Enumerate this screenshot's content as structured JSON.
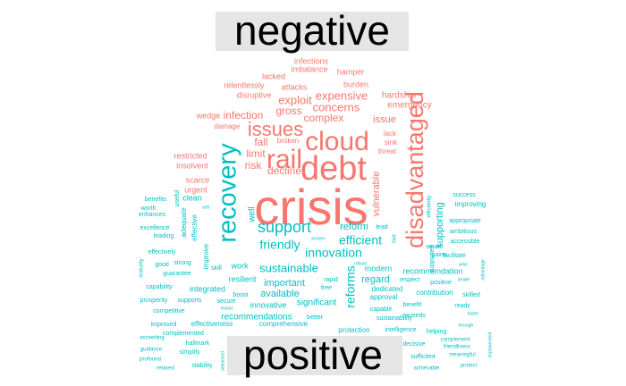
{
  "chart_data": {
    "type": "wordcloud",
    "title": "",
    "groups": [
      {
        "name": "negative",
        "color": "#F8766D",
        "words": [
          {
            "text": "crisis",
            "weight": 100
          },
          {
            "text": "debt",
            "weight": 56
          },
          {
            "text": "cloud",
            "weight": 44
          },
          {
            "text": "rail",
            "weight": 44
          },
          {
            "text": "disadvantaged",
            "weight": 40
          },
          {
            "text": "issues",
            "weight": 33
          },
          {
            "text": "concerns",
            "weight": 19
          },
          {
            "text": "expensive",
            "weight": 19
          },
          {
            "text": "exploit",
            "weight": 19
          },
          {
            "text": "complex",
            "weight": 17
          },
          {
            "text": "infection",
            "weight": 17
          },
          {
            "text": "gross",
            "weight": 17
          },
          {
            "text": "fall",
            "weight": 17
          },
          {
            "text": "decline",
            "weight": 17
          },
          {
            "text": "risk",
            "weight": 17
          },
          {
            "text": "limit",
            "weight": 17
          },
          {
            "text": "issue",
            "weight": 16
          },
          {
            "text": "vulnerable",
            "weight": 16
          },
          {
            "text": "hardship",
            "weight": 14
          },
          {
            "text": "emergency",
            "weight": 14
          },
          {
            "text": "burden",
            "weight": 13
          },
          {
            "text": "attacks",
            "weight": 13
          },
          {
            "text": "relentlessly",
            "weight": 13
          },
          {
            "text": "disruptive",
            "weight": 13
          },
          {
            "text": "lacked",
            "weight": 13
          },
          {
            "text": "hamper",
            "weight": 13
          },
          {
            "text": "infections",
            "weight": 13
          },
          {
            "text": "imbalance",
            "weight": 13
          },
          {
            "text": "wedge",
            "weight": 13
          },
          {
            "text": "damage",
            "weight": 12
          },
          {
            "text": "broken",
            "weight": 12
          },
          {
            "text": "lack",
            "weight": 12
          },
          {
            "text": "sink",
            "weight": 12
          },
          {
            "text": "threat",
            "weight": 12
          },
          {
            "text": "restricted",
            "weight": 13
          },
          {
            "text": "insolvent",
            "weight": 13
          },
          {
            "text": "scarce",
            "weight": 13
          },
          {
            "text": "urgent",
            "weight": 13
          }
        ]
      },
      {
        "name": "positive",
        "color": "#00BFC4",
        "words": [
          {
            "text": "recovery",
            "weight": 50
          },
          {
            "text": "support",
            "weight": 33
          },
          {
            "text": "efficient",
            "weight": 25
          },
          {
            "text": "friendly",
            "weight": 25
          },
          {
            "text": "innovation",
            "weight": 25
          },
          {
            "text": "sustainable",
            "weight": 25
          },
          {
            "text": "reforms",
            "weight": 25
          },
          {
            "text": "supporting",
            "weight": 19
          },
          {
            "text": "reform",
            "weight": 19
          },
          {
            "text": "regard",
            "weight": 19
          },
          {
            "text": "important",
            "weight": 19
          },
          {
            "text": "available",
            "weight": 19
          },
          {
            "text": "significant",
            "weight": 17
          },
          {
            "text": "recommendations",
            "weight": 17
          },
          {
            "text": "well",
            "weight": 16
          },
          {
            "text": "work",
            "weight": 15
          },
          {
            "text": "modern",
            "weight": 15
          },
          {
            "text": "recommendation",
            "weight": 15
          },
          {
            "text": "resilient",
            "weight": 15
          },
          {
            "text": "innovative",
            "weight": 15
          },
          {
            "text": "integrated",
            "weight": 14
          },
          {
            "text": "clean",
            "weight": 14
          },
          {
            "text": "improve",
            "weight": 13
          },
          {
            "text": "effective",
            "weight": 13
          },
          {
            "text": "adequate",
            "weight": 13
          },
          {
            "text": "useful",
            "weight": 12
          },
          {
            "text": "benefits",
            "weight": 12
          },
          {
            "text": "worth",
            "weight": 12
          },
          {
            "text": "enhances",
            "weight": 12
          },
          {
            "text": "excellence",
            "weight": 12
          },
          {
            "text": "leading",
            "weight": 12
          },
          {
            "text": "effectively",
            "weight": 12
          },
          {
            "text": "good",
            "weight": 12
          },
          {
            "text": "strong",
            "weight": 12
          },
          {
            "text": "guarantee",
            "weight": 12
          },
          {
            "text": "capability",
            "weight": 12
          },
          {
            "text": "maturity",
            "weight": 10
          },
          {
            "text": "prosperity",
            "weight": 12
          },
          {
            "text": "supports",
            "weight": 12
          },
          {
            "text": "competitive",
            "weight": 12
          },
          {
            "text": "improved",
            "weight": 12
          },
          {
            "text": "effectiveness",
            "weight": 13
          },
          {
            "text": "complemented",
            "weight": 12
          },
          {
            "text": "hallmark",
            "weight": 12
          },
          {
            "text": "simplify",
            "weight": 12
          },
          {
            "text": "stability",
            "weight": 12
          },
          {
            "text": "exceeding",
            "weight": 10
          },
          {
            "text": "guidance",
            "weight": 10
          },
          {
            "text": "profound",
            "weight": 10
          },
          {
            "text": "relaxed",
            "weight": 10
          },
          {
            "text": "advanced",
            "weight": 9
          },
          {
            "text": "bonus",
            "weight": 9
          },
          {
            "text": "soft",
            "weight": 9
          },
          {
            "text": "skill",
            "weight": 12
          },
          {
            "text": "boost",
            "weight": 12
          },
          {
            "text": "secure",
            "weight": 12
          },
          {
            "text": "rapid",
            "weight": 12
          },
          {
            "text": "free",
            "weight": 12
          },
          {
            "text": "better",
            "weight": 12
          },
          {
            "text": "comprehensive",
            "weight": 13
          },
          {
            "text": "protection",
            "weight": 14
          },
          {
            "text": "intelligence",
            "weight": 12
          },
          {
            "text": "sustainability",
            "weight": 13
          },
          {
            "text": "approval",
            "weight": 13
          },
          {
            "text": "dedicated",
            "weight": 13
          },
          {
            "text": "contribution",
            "weight": 13
          },
          {
            "text": "capable",
            "weight": 12
          },
          {
            "text": "benefit",
            "weight": 12
          },
          {
            "text": "exceeds",
            "weight": 12
          },
          {
            "text": "respect",
            "weight": 12
          },
          {
            "text": "positive",
            "weight": 12
          },
          {
            "text": "lead",
            "weight": 12
          },
          {
            "text": "fast",
            "weight": 11
          },
          {
            "text": "robust",
            "weight": 9
          },
          {
            "text": "proven",
            "weight": 9
          },
          {
            "text": "efficiently",
            "weight": 11
          },
          {
            "text": "supported",
            "weight": 12
          },
          {
            "text": "smart",
            "weight": 12
          },
          {
            "text": "gains",
            "weight": 12
          },
          {
            "text": "facilitate",
            "weight": 12
          },
          {
            "text": "accessible",
            "weight": 12
          },
          {
            "text": "ambitious",
            "weight": 12
          },
          {
            "text": "appropriate",
            "weight": 12
          },
          {
            "text": "improving",
            "weight": 13
          },
          {
            "text": "success",
            "weight": 12
          },
          {
            "text": "skilled",
            "weight": 12
          },
          {
            "text": "ready",
            "weight": 12
          },
          {
            "text": "faster",
            "weight": 9
          },
          {
            "text": "enough",
            "weight": 9
          },
          {
            "text": "lender",
            "weight": 9
          },
          {
            "text": "wise",
            "weight": 9
          },
          {
            "text": "advantage",
            "weight": 9
          },
          {
            "text": "helping",
            "weight": 12
          },
          {
            "text": "complement",
            "weight": 10
          },
          {
            "text": "friendliness",
            "weight": 10
          },
          {
            "text": "meaningful",
            "weight": 10
          },
          {
            "text": "protect",
            "weight": 10
          },
          {
            "text": "decisive",
            "weight": 12
          },
          {
            "text": "sufficient",
            "weight": 12
          },
          {
            "text": "achievable",
            "weight": 10
          },
          {
            "text": "improvement",
            "weight": 9
          }
        ]
      }
    ]
  }
}
